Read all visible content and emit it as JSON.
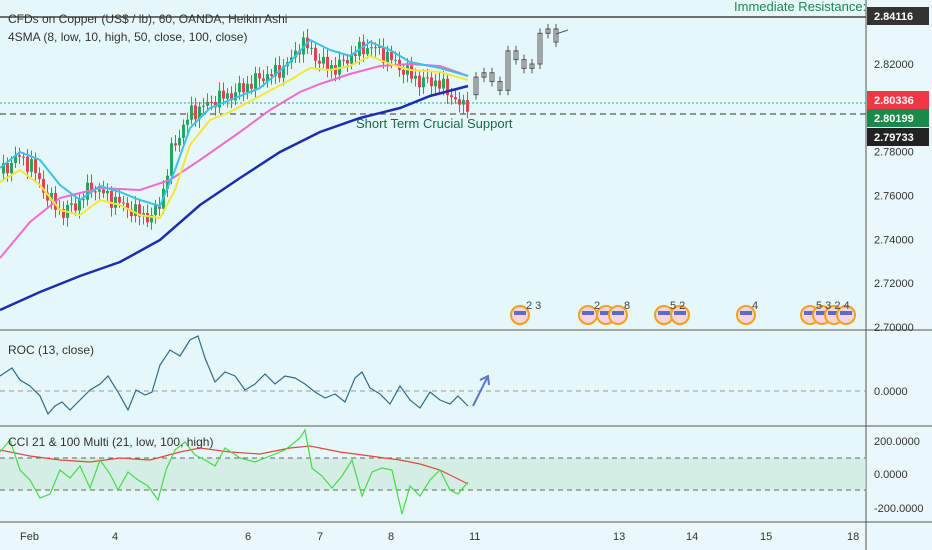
{
  "chart_data": [
    {
      "type": "candlestick",
      "title": "CFDs on Copper (US$ / lb), 60, OANDA, Heikin Ashi",
      "indicator": "4SMA (8, low, 10, high, 50, close, 100, close)",
      "y_ticks": [
        2.82,
        2.8,
        2.78,
        2.76,
        2.74,
        2.72,
        2.7
      ],
      "y_tick_labels": [
        "2.82000",
        "2.78000",
        "2.76000",
        "2.74000",
        "2.72000",
        "2.70000"
      ],
      "ylim": [
        2.695,
        2.848
      ],
      "resistance": {
        "label": "Immediate Resistance:",
        "value": 2.84116,
        "value_label": "2.84116",
        "color": "#333333"
      },
      "support": {
        "label": "Short Term Crucial Support",
        "value": 2.80199,
        "value_label": "2.80199",
        "color": "#1a8a4a"
      },
      "current_price": {
        "value": 2.80336,
        "value_label": "2.80336",
        "color": "#f23645"
      },
      "low_marker": {
        "value": 2.79733,
        "value_label": "2.79733",
        "color": "#222222"
      },
      "event_badges": [
        "2 3",
        "2",
        "8",
        "5 2",
        "4",
        "5 3 2 4"
      ]
    },
    {
      "type": "line",
      "title": "ROC (13, close)",
      "y_tick_labels": [
        "0.0000"
      ],
      "series": [
        {
          "name": "ROC",
          "color": "#2e6d8e"
        }
      ]
    },
    {
      "type": "line",
      "title": "CCI 21 & 100 Multi (21, low, 100, high)",
      "y_tick_labels": [
        "200.0000",
        "0.0000",
        "-200.0000"
      ],
      "series": [
        {
          "name": "CCI 21",
          "color": "#44dd44"
        },
        {
          "name": "CCI 100",
          "color": "#e04a3a"
        }
      ]
    }
  ],
  "x_tick_labels": [
    "Feb",
    "4",
    "6",
    "7",
    "8",
    "11",
    "13",
    "14",
    "15",
    "18"
  ],
  "colors": {
    "up": "#22a85a",
    "down": "#e0444d",
    "sma8": "#f5e63a",
    "sma10": "#3ec0e8",
    "sma50": "#f06bd0",
    "sma100": "#1a2fb0"
  }
}
